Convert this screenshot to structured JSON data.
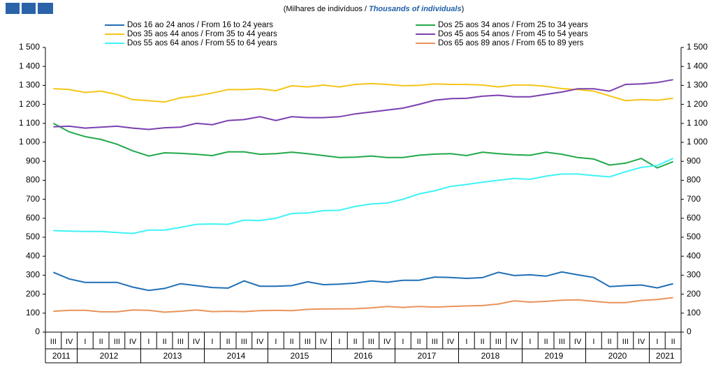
{
  "chart_data": {
    "type": "line",
    "subtitle": [
      "(Milhares de indivíduos / ",
      "Thousands of individuals",
      ")"
    ],
    "categories": [
      "III",
      "IV",
      "I",
      "II",
      "III",
      "IV",
      "I",
      "II",
      "III",
      "IV",
      "I",
      "II",
      "III",
      "IV",
      "I",
      "II",
      "III",
      "IV",
      "I",
      "II",
      "III",
      "IV",
      "I",
      "II",
      "III",
      "IV",
      "I",
      "II",
      "III",
      "IV",
      "I",
      "II",
      "III",
      "IV",
      "I",
      "II",
      "III",
      "IV",
      "I",
      "II"
    ],
    "years": [
      "2011",
      "2012",
      "2013",
      "2014",
      "2015",
      "2016",
      "2017",
      "2018",
      "2019",
      "2020",
      "2021"
    ],
    "ylim": [
      0,
      1500
    ],
    "yticks": [
      0,
      100,
      200,
      300,
      400,
      500,
      600,
      700,
      800,
      900,
      {
        "value": 1000,
        "label": "1 000"
      },
      {
        "value": 1100,
        "label": "1 100"
      },
      {
        "value": 1200,
        "label": "1 200"
      },
      {
        "value": 1300,
        "label": "1 300"
      },
      {
        "value": 1400,
        "label": "1 400"
      },
      {
        "value": 1500,
        "label": "1 500"
      }
    ],
    "series": [
      {
        "name": "Dos 16 ao 24 anos / From 16 to 24 years",
        "color": "#1f6fb5",
        "values": [
          315,
          280,
          262,
          262,
          262,
          237,
          220,
          230,
          255,
          245,
          235,
          232,
          270,
          242,
          242,
          245,
          265,
          250,
          253,
          258,
          270,
          263,
          273,
          273,
          290,
          288,
          283,
          287,
          315,
          298,
          302,
          295,
          317,
          302,
          288,
          240,
          245,
          248,
          233,
          255
        ]
      },
      {
        "name": "Dos 25 aos 34 anos / From 25 to 34 years",
        "color": "#22a84a",
        "values": [
          1100,
          1055,
          1030,
          1015,
          990,
          955,
          928,
          945,
          942,
          937,
          930,
          950,
          950,
          937,
          940,
          948,
          940,
          930,
          920,
          922,
          928,
          920,
          920,
          932,
          938,
          940,
          930,
          948,
          940,
          935,
          932,
          948,
          937,
          920,
          912,
          880,
          890,
          915,
          865,
          898
        ]
      },
      {
        "name": "Dos 35 aos 44 anos / From 35 to 44 years",
        "color": "#f5c518",
        "values": [
          1283,
          1278,
          1263,
          1270,
          1252,
          1225,
          1220,
          1212,
          1235,
          1245,
          1260,
          1278,
          1278,
          1282,
          1272,
          1298,
          1292,
          1302,
          1292,
          1305,
          1310,
          1305,
          1298,
          1300,
          1308,
          1305,
          1305,
          1302,
          1292,
          1302,
          1302,
          1295,
          1283,
          1278,
          1270,
          1245,
          1220,
          1225,
          1222,
          1232
        ]
      },
      {
        "name": "Dos 45 aos 54 anos / From 45 to 54 years",
        "color": "#7b3fb0",
        "values": [
          1082,
          1085,
          1075,
          1080,
          1085,
          1075,
          1068,
          1077,
          1080,
          1100,
          1093,
          1115,
          1120,
          1135,
          1115,
          1135,
          1130,
          1130,
          1135,
          1150,
          1160,
          1170,
          1180,
          1200,
          1222,
          1230,
          1232,
          1243,
          1248,
          1240,
          1240,
          1253,
          1265,
          1282,
          1282,
          1270,
          1305,
          1308,
          1315,
          1330
        ]
      },
      {
        "name": "Dos 55 aos 64 anos / From 55 to 64 years",
        "color": "#3ef3f5",
        "values": [
          535,
          532,
          530,
          530,
          525,
          520,
          538,
          538,
          552,
          568,
          570,
          568,
          590,
          588,
          600,
          625,
          628,
          640,
          642,
          662,
          675,
          680,
          700,
          728,
          745,
          768,
          778,
          790,
          800,
          810,
          805,
          822,
          833,
          833,
          825,
          818,
          845,
          868,
          878,
          915
        ]
      },
      {
        "name": "Dos 65 aos 89 anos / From 65 to 89 yers",
        "color": "#e8935a",
        "values": [
          110,
          115,
          115,
          107,
          107,
          117,
          115,
          105,
          110,
          117,
          108,
          110,
          108,
          113,
          115,
          113,
          120,
          122,
          122,
          123,
          128,
          135,
          130,
          135,
          132,
          135,
          138,
          140,
          148,
          165,
          158,
          162,
          168,
          170,
          162,
          155,
          155,
          167,
          172,
          182
        ]
      }
    ]
  }
}
